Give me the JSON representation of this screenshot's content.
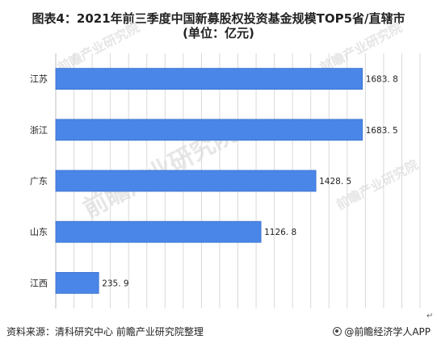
{
  "title": {
    "line1": "图表4：2021年前三季度中国新募股权投资基金规模TOP5省/直辖市",
    "line2": "(单位：亿元)"
  },
  "source": "资料来源：清科研究中心 前瞻产业研究院整理",
  "brand": "@前瞻经济学人APP",
  "return_mark": "↵",
  "watermark": "前瞻产业研究院",
  "colors": {
    "bar": "#4a86e8",
    "bar_edge": "#3a6fcc",
    "grid": "#d9d9d9",
    "axis": "#bfbfbf",
    "label": "#222222"
  },
  "chart_data": {
    "type": "bar",
    "orientation": "horizontal",
    "categories": [
      "江苏",
      "浙江",
      "广东",
      "山东",
      "江西"
    ],
    "values": [
      1683.8,
      1683.5,
      1428.5,
      1126.8,
      235.9
    ],
    "value_labels": [
      "1683. 8",
      "1683. 5",
      "1428. 5",
      "1126. 8",
      "235. 9"
    ],
    "xlim": [
      0,
      2000
    ],
    "grid": true,
    "legend": "none"
  }
}
